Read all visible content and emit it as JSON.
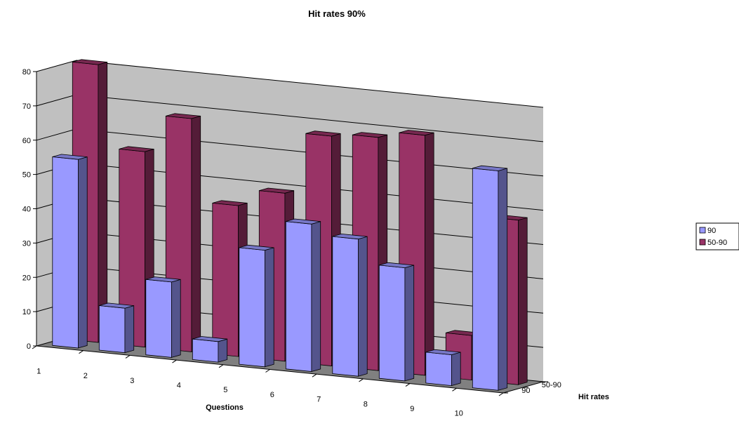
{
  "chart_data": {
    "type": "bar",
    "subtype": "3d-column",
    "title": "Hit rates 90%",
    "xlabel": "Questions",
    "zlabel": "Hit rates",
    "categories": [
      "1",
      "2",
      "3",
      "4",
      "5",
      "6",
      "7",
      "8",
      "9",
      "10"
    ],
    "depth_labels": [
      "90",
      "50-90"
    ],
    "y_ticks": [
      "0",
      "10",
      "20",
      "30",
      "40",
      "50",
      "60",
      "70",
      "80"
    ],
    "ylim": [
      0,
      80
    ],
    "grid": true,
    "legend_position": "right",
    "series": [
      {
        "name": "90",
        "color": "#9999ff",
        "values": [
          55,
          13,
          22,
          6,
          34,
          43,
          40,
          33,
          9,
          64
        ]
      },
      {
        "name": "50-90",
        "color": "#993366",
        "values": [
          81,
          57,
          68,
          44,
          49,
          67,
          68,
          70,
          13,
          48
        ]
      }
    ],
    "colors": {
      "wall": "#c0c0c0",
      "floor": "#808080",
      "series_90": "#9999ff",
      "series_50_90": "#993366"
    }
  }
}
